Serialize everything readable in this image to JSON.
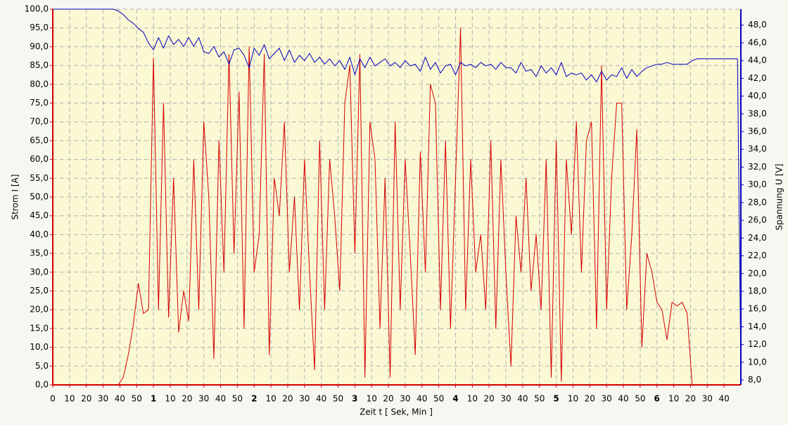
{
  "chart_data": {
    "type": "line",
    "x_label": "Zeit  t  [ Sek, Min ]",
    "y_label": "Strom  I  [A]",
    "y2_label": "Spannung  U  [V]",
    "grid": true,
    "xlim": [
      0,
      410
    ],
    "xticks": [
      0,
      10,
      20,
      30,
      40,
      50,
      {
        "value": 60,
        "label": "1"
      },
      {
        "value": 70,
        "label": "10"
      },
      {
        "value": 80,
        "label": "20"
      },
      {
        "value": 90,
        "label": "30"
      },
      {
        "value": 100,
        "label": "40"
      },
      {
        "value": 110,
        "label": "50"
      },
      {
        "value": 120,
        "label": "2"
      },
      {
        "value": 130,
        "label": "10"
      },
      {
        "value": 140,
        "label": "20"
      },
      {
        "value": 150,
        "label": "30"
      },
      {
        "value": 160,
        "label": "40"
      },
      {
        "value": 170,
        "label": "50"
      },
      {
        "value": 180,
        "label": "3"
      },
      {
        "value": 190,
        "label": "10"
      },
      {
        "value": 200,
        "label": "20"
      },
      {
        "value": 210,
        "label": "30"
      },
      {
        "value": 220,
        "label": "40"
      },
      {
        "value": 230,
        "label": "50"
      },
      {
        "value": 240,
        "label": "4"
      },
      {
        "value": 250,
        "label": "10"
      },
      {
        "value": 260,
        "label": "20"
      },
      {
        "value": 270,
        "label": "30"
      },
      {
        "value": 280,
        "label": "40"
      },
      {
        "value": 290,
        "label": "50"
      },
      {
        "value": 300,
        "label": "5"
      },
      {
        "value": 310,
        "label": "10"
      },
      {
        "value": 320,
        "label": "20"
      },
      {
        "value": 330,
        "label": "30"
      },
      {
        "value": 340,
        "label": "40"
      },
      {
        "value": 350,
        "label": "50"
      },
      {
        "value": 360,
        "label": "6"
      },
      {
        "value": 370,
        "label": "10"
      },
      {
        "value": 380,
        "label": "20"
      },
      {
        "value": 390,
        "label": "30"
      },
      {
        "value": 400,
        "label": "40"
      }
    ],
    "ylim": [
      0,
      100
    ],
    "yticks": [
      {
        "value": 0,
        "label": "0,0"
      },
      {
        "value": 5,
        "label": "5,0"
      },
      {
        "value": 10,
        "label": "10,0"
      },
      {
        "value": 15,
        "label": "15,0"
      },
      {
        "value": 20,
        "label": "20,0"
      },
      {
        "value": 25,
        "label": "25,0"
      },
      {
        "value": 30,
        "label": "30,0"
      },
      {
        "value": 35,
        "label": "35,0"
      },
      {
        "value": 40,
        "label": "40,0"
      },
      {
        "value": 45,
        "label": "45,0"
      },
      {
        "value": 50,
        "label": "50,0"
      },
      {
        "value": 55,
        "label": "55,0"
      },
      {
        "value": 60,
        "label": "60,0"
      },
      {
        "value": 65,
        "label": "65,0"
      },
      {
        "value": 70,
        "label": "70,0"
      },
      {
        "value": 75,
        "label": "75,0"
      },
      {
        "value": 80,
        "label": "80,0"
      },
      {
        "value": 85,
        "label": "85,0"
      },
      {
        "value": 90,
        "label": "90,0"
      },
      {
        "value": 95,
        "label": "95,0"
      },
      {
        "value": 100,
        "label": "100,0"
      }
    ],
    "y2lim": [
      7.45,
      49.8
    ],
    "y2ticks": [
      {
        "value": 8,
        "label": "8,0"
      },
      {
        "value": 10,
        "label": "10,0"
      },
      {
        "value": 12,
        "label": "12,0"
      },
      {
        "value": 14,
        "label": "14,0"
      },
      {
        "value": 16,
        "label": "16,0"
      },
      {
        "value": 18,
        "label": "18,0"
      },
      {
        "value": 20,
        "label": "20,0"
      },
      {
        "value": 22,
        "label": "22,0"
      },
      {
        "value": 24,
        "label": "24,0"
      },
      {
        "value": 26,
        "label": "26,0"
      },
      {
        "value": 28,
        "label": "28,0"
      },
      {
        "value": 30,
        "label": "30,0"
      },
      {
        "value": 32,
        "label": "32,0"
      },
      {
        "value": 34,
        "label": "34,0"
      },
      {
        "value": 36,
        "label": "36,0"
      },
      {
        "value": 38,
        "label": "38,0"
      },
      {
        "value": 40,
        "label": "40,0"
      },
      {
        "value": 42,
        "label": "42,0"
      },
      {
        "value": 44,
        "label": "44,0"
      },
      {
        "value": 46,
        "label": "46,0"
      },
      {
        "value": 48,
        "label": "48,0"
      }
    ],
    "x": [
      0,
      3,
      6,
      9,
      12,
      15,
      18,
      21,
      24,
      27,
      30,
      33,
      36,
      39,
      42,
      45,
      48,
      51,
      54,
      57,
      60,
      63,
      66,
      69,
      72,
      75,
      78,
      81,
      84,
      87,
      90,
      93,
      96,
      99,
      102,
      105,
      108,
      111,
      114,
      117,
      120,
      123,
      126,
      129,
      132,
      135,
      138,
      141,
      144,
      147,
      150,
      153,
      156,
      159,
      162,
      165,
      168,
      171,
      174,
      177,
      180,
      183,
      186,
      189,
      192,
      195,
      198,
      201,
      204,
      207,
      210,
      213,
      216,
      219,
      222,
      225,
      228,
      231,
      234,
      237,
      240,
      243,
      246,
      249,
      252,
      255,
      258,
      261,
      264,
      267,
      270,
      273,
      276,
      279,
      282,
      285,
      288,
      291,
      294,
      297,
      300,
      303,
      306,
      309,
      312,
      315,
      318,
      321,
      324,
      327,
      330,
      333,
      336,
      339,
      342,
      345,
      348,
      351,
      354,
      357,
      360,
      363,
      366,
      369,
      372,
      375,
      378,
      381,
      384,
      387,
      390,
      393,
      396,
      399,
      402,
      405,
      408,
      410
    ],
    "series": [
      {
        "color": "#d40000",
        "values": [
          0,
          0,
          0,
          0,
          0,
          0,
          0,
          0,
          0,
          0,
          0,
          0,
          0,
          0,
          2,
          8,
          16,
          27,
          19,
          20,
          87,
          20,
          75,
          18,
          55,
          14,
          25,
          17,
          60,
          20,
          70,
          50,
          7,
          65,
          30,
          88,
          35,
          78,
          15,
          90,
          30,
          40,
          88,
          8,
          55,
          45,
          70,
          30,
          50,
          20,
          60,
          30,
          4,
          65,
          20,
          60,
          45,
          25,
          75,
          85,
          35,
          88,
          2,
          70,
          60,
          15,
          55,
          2,
          70,
          20,
          60,
          35,
          8,
          62,
          30,
          80,
          75,
          20,
          65,
          15,
          55,
          95,
          20,
          60,
          30,
          40,
          20,
          65,
          15,
          60,
          30,
          5,
          45,
          30,
          55,
          25,
          40,
          20,
          60,
          2,
          65,
          1,
          60,
          40,
          70,
          30,
          65,
          70,
          15,
          85,
          20,
          55,
          75,
          75,
          20,
          40,
          68,
          10,
          35,
          30,
          22,
          20,
          12,
          22,
          21,
          22,
          19,
          0,
          0,
          0,
          0,
          0,
          0,
          0,
          0,
          0,
          0,
          0
        ]
      },
      {
        "color": "#0000c0",
        "axis": "y2",
        "values": [
          49.8,
          49.8,
          49.8,
          49.8,
          49.8,
          49.8,
          49.8,
          49.8,
          49.8,
          49.8,
          49.8,
          49.8,
          49.8,
          49.6,
          49.2,
          48.6,
          48.2,
          47.6,
          47.2,
          46.0,
          45.2,
          46.6,
          45.4,
          46.8,
          45.8,
          46.4,
          45.6,
          46.6,
          45.6,
          46.6,
          45.0,
          44.8,
          45.6,
          44.4,
          45.0,
          43.6,
          45.2,
          45.4,
          44.6,
          43.2,
          45.4,
          44.6,
          45.8,
          44.2,
          44.8,
          45.4,
          44.0,
          45.2,
          43.8,
          44.6,
          44.0,
          44.8,
          43.8,
          44.4,
          43.6,
          44.2,
          43.4,
          44.0,
          43.0,
          44.4,
          42.4,
          44.2,
          43.2,
          44.4,
          43.4,
          43.8,
          44.2,
          43.4,
          43.8,
          43.2,
          44.0,
          43.4,
          43.6,
          42.8,
          44.4,
          43.0,
          43.8,
          42.6,
          43.4,
          43.6,
          42.4,
          43.8,
          43.4,
          43.6,
          43.2,
          43.8,
          43.4,
          43.6,
          43.0,
          43.8,
          43.2,
          43.2,
          42.6,
          43.8,
          42.8,
          43.0,
          42.2,
          43.4,
          42.6,
          43.2,
          42.4,
          43.8,
          42.2,
          42.6,
          42.4,
          42.6,
          41.8,
          42.4,
          41.6,
          42.8,
          41.8,
          42.4,
          42.2,
          43.2,
          42.0,
          43.0,
          42.2,
          42.8,
          43.2,
          43.4,
          43.6,
          43.6,
          43.8,
          43.6,
          43.6,
          43.6,
          43.6,
          44.0,
          44.2,
          44.2,
          44.2,
          44.2,
          44.2,
          44.2,
          44.2,
          44.2,
          44.2,
          9.0
        ]
      }
    ]
  }
}
